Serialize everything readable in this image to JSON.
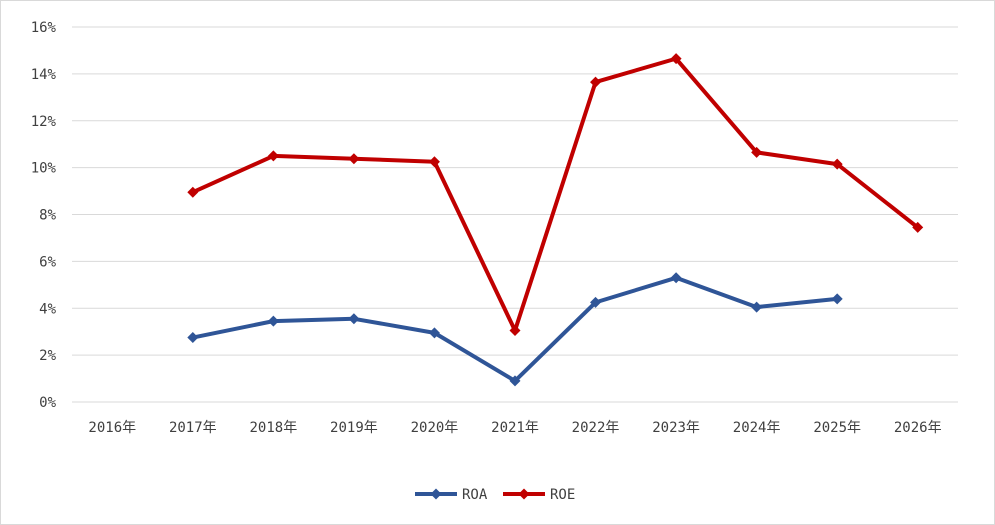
{
  "chart_data": {
    "type": "line",
    "title": "",
    "xlabel": "",
    "ylabel": "",
    "categories": [
      "2016年",
      "2017年",
      "2018年",
      "2019年",
      "2020年",
      "2021年",
      "2022年",
      "2023年",
      "2024年",
      "2025年",
      "2026年"
    ],
    "y_ticks": [
      "0%",
      "2%",
      "4%",
      "6%",
      "8%",
      "10%",
      "12%",
      "14%",
      "16%"
    ],
    "ylim": [
      0,
      16
    ],
    "y_unit": "%",
    "grid": true,
    "legend_position": "bottom",
    "series": [
      {
        "name": "ROA",
        "color": "#2F5597",
        "marker": "diamond",
        "values": [
          null,
          2.75,
          3.45,
          3.55,
          2.95,
          0.9,
          4.25,
          5.3,
          4.05,
          4.4,
          null
        ]
      },
      {
        "name": "ROE",
        "color": "#C00000",
        "marker": "diamond",
        "values": [
          null,
          8.95,
          10.5,
          10.38,
          10.25,
          3.05,
          13.65,
          14.65,
          10.65,
          10.15,
          7.45
        ]
      }
    ]
  }
}
